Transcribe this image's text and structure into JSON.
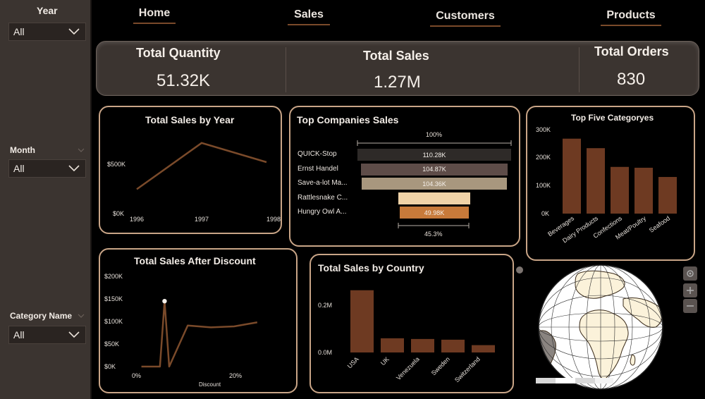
{
  "sidebar": {
    "year": {
      "label": "Year",
      "value": "All"
    },
    "month": {
      "label": "Month",
      "value": "All"
    },
    "category": {
      "label": "Category Name",
      "value": "All"
    }
  },
  "nav": {
    "home": "Home",
    "sales": "Sales",
    "customers": "Customers",
    "products": "Products"
  },
  "kpis": {
    "quantity": {
      "label": "Total Quantity",
      "value": "51.32K"
    },
    "sales": {
      "label": "Total Sales",
      "value": "1.27M"
    },
    "orders": {
      "label": "Total Orders",
      "value": "830"
    }
  },
  "colors": {
    "bar": "#6e3a22",
    "line": "#7a4a2a",
    "border": "#c9a587"
  },
  "sales_by_year": {
    "title": "Total Sales by Year",
    "y_ticks": [
      "$0K",
      "$500K"
    ],
    "chart_data": {
      "type": "line",
      "x": [
        "1996",
        "1997",
        "1998"
      ],
      "values": [
        210000,
        620000,
        450000
      ],
      "ylim": [
        0,
        750000
      ]
    }
  },
  "top_companies": {
    "title": "Top Companies Sales",
    "top_pct": "100%",
    "bottom_pct": "45.3%",
    "chart_data": {
      "type": "bar",
      "categories": [
        "QUICK-Stop",
        "Ernst Handel",
        "Save-a-lot Ma...",
        "Rattlesnake C...",
        "Hungry Owl A..."
      ],
      "labels": [
        "110.28K",
        "104.87K",
        "104.36K",
        "",
        "49.98K"
      ],
      "values": [
        110280,
        104870,
        104360,
        52000,
        49980
      ],
      "colors": [
        "#2e2a28",
        "#5e4c48",
        "#a8977e",
        "#f0d3a8",
        "#c87a3a"
      ]
    }
  },
  "top_categories": {
    "title": "Top Five Categoryes",
    "y_ticks": [
      "0K",
      "100K",
      "200K",
      "300K"
    ],
    "chart_data": {
      "type": "bar",
      "categories": [
        "Beverages",
        "Dairy Products",
        "Confections",
        "Meat/Poultry",
        "Seafood"
      ],
      "values": [
        268000,
        234000,
        167000,
        164000,
        131000
      ],
      "ylim": [
        0,
        300000
      ]
    }
  },
  "sales_after_discount": {
    "title": "Total Sales After Discount",
    "xlabel": "Discount",
    "y_ticks": [
      "$0K",
      "$50K",
      "$100K",
      "$150K",
      "$200K"
    ],
    "x_ticks": [
      "0%",
      "20%"
    ],
    "chart_data": {
      "type": "line",
      "x": [
        0,
        0.04,
        0.05,
        0.06,
        0.1,
        0.15,
        0.2,
        0.25
      ],
      "values": [
        0,
        0,
        145000,
        0,
        91000,
        87000,
        89000,
        98000
      ],
      "ylim": [
        0,
        200000
      ],
      "xlim": [
        -0.01,
        0.27
      ]
    }
  },
  "sales_by_country": {
    "title": "Total Sales by Country",
    "y_ticks": [
      "0.0M",
      "0.2M"
    ],
    "chart_data": {
      "type": "bar",
      "categories": [
        "USA",
        "UK",
        "Venezuela",
        "Sweden",
        "Switzerland"
      ],
      "values": [
        263000,
        60000,
        57000,
        54000,
        31000
      ],
      "ylim": [
        0,
        280000
      ]
    }
  }
}
